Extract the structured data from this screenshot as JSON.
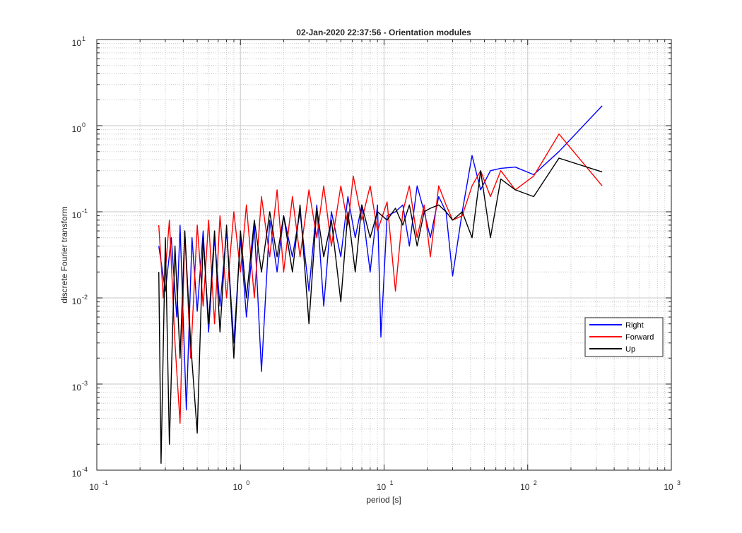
{
  "chart_data": {
    "type": "line",
    "title": "02-Jan-2020 22:37:56 - Orientation modules",
    "xlabel": "period [s]",
    "ylabel": "discrete Fourier transform",
    "xscale": "log",
    "yscale": "log",
    "xlim": [
      0.1,
      1000
    ],
    "ylim": [
      0.0001,
      10
    ],
    "grid": "major and minor",
    "legend_position": "lower-right",
    "x_ticks": [
      {
        "base": "10",
        "exp": "-1",
        "value": 0.1
      },
      {
        "base": "10",
        "exp": "0",
        "value": 1
      },
      {
        "base": "10",
        "exp": "1",
        "value": 10
      },
      {
        "base": "10",
        "exp": "2",
        "value": 100
      },
      {
        "base": "10",
        "exp": "3",
        "value": 1000
      }
    ],
    "y_ticks": [
      {
        "base": "10",
        "exp": "-4",
        "value": 0.0001
      },
      {
        "base": "10",
        "exp": "-3",
        "value": 0.001
      },
      {
        "base": "10",
        "exp": "-2",
        "value": 0.01
      },
      {
        "base": "10",
        "exp": "-1",
        "value": 0.1
      },
      {
        "base": "10",
        "exp": "0",
        "value": 1
      },
      {
        "base": "10",
        "exp": "1",
        "value": 10
      }
    ],
    "series": [
      {
        "name": "Right",
        "color": "#0000ff",
        "x": [
          0.27,
          0.3,
          0.33,
          0.36,
          0.38,
          0.42,
          0.46,
          0.5,
          0.55,
          0.6,
          0.66,
          0.72,
          0.8,
          0.9,
          1.0,
          1.1,
          1.25,
          1.4,
          1.6,
          1.8,
          2.0,
          2.3,
          2.6,
          3.0,
          3.4,
          3.8,
          4.3,
          5.0,
          5.6,
          6.3,
          7.0,
          8.0,
          9.0,
          9.5,
          10.5,
          12,
          13.5,
          15,
          17,
          19,
          21,
          24,
          27,
          30,
          35,
          41,
          47,
          55,
          65,
          82,
          110,
          165,
          330
        ],
        "y": [
          0.04,
          0.012,
          0.05,
          0.006,
          0.07,
          0.0005,
          0.05,
          0.007,
          0.06,
          0.004,
          0.05,
          0.008,
          0.06,
          0.003,
          0.05,
          0.006,
          0.07,
          0.0014,
          0.08,
          0.02,
          0.09,
          0.03,
          0.1,
          0.012,
          0.12,
          0.008,
          0.1,
          0.03,
          0.15,
          0.05,
          0.12,
          0.02,
          0.12,
          0.0035,
          0.09,
          0.1,
          0.12,
          0.04,
          0.2,
          0.1,
          0.05,
          0.15,
          0.1,
          0.018,
          0.1,
          0.45,
          0.18,
          0.3,
          0.32,
          0.33,
          0.27,
          0.5,
          1.7
        ]
      },
      {
        "name": "Forward",
        "color": "#ff0000",
        "x": [
          0.27,
          0.29,
          0.32,
          0.35,
          0.38,
          0.41,
          0.45,
          0.5,
          0.55,
          0.6,
          0.66,
          0.72,
          0.8,
          0.9,
          1.0,
          1.1,
          1.25,
          1.4,
          1.6,
          1.8,
          2.0,
          2.3,
          2.6,
          3.0,
          3.4,
          3.8,
          4.3,
          5.0,
          5.6,
          6.1,
          7.0,
          8.0,
          9.0,
          10.5,
          12,
          13.5,
          15,
          17,
          19,
          21,
          24,
          27,
          30,
          35,
          41,
          47,
          55,
          65,
          82,
          110,
          165,
          330
        ],
        "y": [
          0.07,
          0.01,
          0.08,
          0.003,
          0.00035,
          0.06,
          0.002,
          0.07,
          0.008,
          0.08,
          0.005,
          0.09,
          0.01,
          0.1,
          0.02,
          0.12,
          0.01,
          0.15,
          0.03,
          0.18,
          0.02,
          0.15,
          0.03,
          0.18,
          0.05,
          0.2,
          0.04,
          0.2,
          0.07,
          0.26,
          0.08,
          0.2,
          0.06,
          0.13,
          0.012,
          0.1,
          0.2,
          0.05,
          0.12,
          0.03,
          0.2,
          0.12,
          0.08,
          0.09,
          0.2,
          0.3,
          0.15,
          0.3,
          0.18,
          0.26,
          0.8,
          0.2
        ]
      },
      {
        "name": "Up",
        "color": "#000000",
        "x": [
          0.27,
          0.28,
          0.3,
          0.32,
          0.35,
          0.38,
          0.41,
          0.45,
          0.5,
          0.55,
          0.6,
          0.66,
          0.72,
          0.8,
          0.9,
          1.0,
          1.1,
          1.25,
          1.4,
          1.6,
          1.8,
          2.0,
          2.3,
          2.6,
          3.0,
          3.4,
          3.8,
          4.3,
          5.0,
          5.6,
          6.3,
          7.0,
          8.0,
          9.0,
          10.5,
          12,
          13.5,
          15,
          17,
          19,
          21,
          24,
          27,
          30,
          35,
          41,
          47,
          55,
          65,
          82,
          110,
          165,
          330
        ],
        "y": [
          0.02,
          0.00012,
          0.05,
          0.0002,
          0.04,
          0.002,
          0.06,
          0.003,
          0.00027,
          0.05,
          0.005,
          0.06,
          0.004,
          0.07,
          0.002,
          0.06,
          0.01,
          0.08,
          0.02,
          0.1,
          0.03,
          0.09,
          0.02,
          0.12,
          0.005,
          0.11,
          0.03,
          0.08,
          0.009,
          0.1,
          0.02,
          0.12,
          0.05,
          0.1,
          0.08,
          0.11,
          0.07,
          0.12,
          0.04,
          0.1,
          0.11,
          0.12,
          0.1,
          0.08,
          0.1,
          0.05,
          0.3,
          0.05,
          0.24,
          0.18,
          0.15,
          0.42,
          0.29
        ]
      }
    ]
  }
}
